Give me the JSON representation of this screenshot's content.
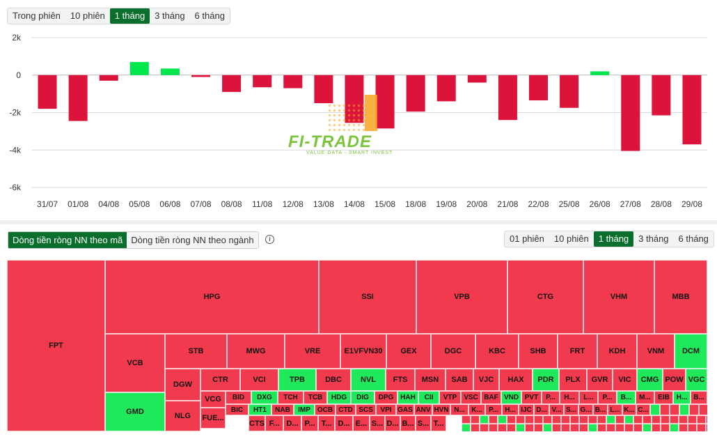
{
  "colors": {
    "negative": "#dc143c",
    "positive": "#00e64d",
    "active_tab": "#0a6e2c",
    "tm_negative": "#f23a4e",
    "tm_positive": "#1fe85a"
  },
  "top_range": {
    "options": [
      "Trong phiên",
      "10 phiên",
      "1 tháng",
      "3 tháng",
      "6 tháng"
    ],
    "selected": "1 tháng"
  },
  "logo": {
    "title": "FI-TRADE",
    "subtitle": "VALUE DATA - SMART INVEST"
  },
  "chart_data": {
    "type": "bar",
    "categories": [
      "31/07",
      "01/08",
      "04/08",
      "05/08",
      "06/08",
      "07/08",
      "08/08",
      "11/08",
      "12/08",
      "13/08",
      "14/08",
      "15/08",
      "18/08",
      "19/08",
      "20/08",
      "21/08",
      "22/08",
      "25/08",
      "26/08",
      "27/08",
      "28/08",
      "29/08"
    ],
    "values": [
      -1800,
      -2450,
      -300,
      700,
      350,
      -100,
      -900,
      -650,
      -700,
      -1500,
      -2550,
      -2850,
      -1950,
      -1400,
      -400,
      -2400,
      -1350,
      -1750,
      200,
      -4050,
      -2150,
      -3700
    ],
    "ylim": [
      -6000,
      2000
    ],
    "yticks": [
      2000,
      0,
      -2000,
      -4000,
      -6000
    ],
    "ytick_labels": [
      "2k",
      "0",
      "-2k",
      "-4k",
      "-6k"
    ],
    "grid": true
  },
  "bottom": {
    "tabs": [
      "Dòng tiền ròng NN theo mã",
      "Dòng tiền ròng NN theo ngành"
    ],
    "selected_tab": "Dòng tiền ròng NN theo mã",
    "range_options": [
      "01 phiên",
      "10 phiên",
      "1 tháng",
      "3 tháng",
      "6 tháng"
    ],
    "range_selected": "1 tháng",
    "info_icon": "info-circle-icon"
  },
  "treemap": [
    {
      "label": "FPT",
      "sign": "neg"
    },
    {
      "label": "HPG",
      "sign": "neg"
    },
    {
      "label": "SSI",
      "sign": "neg"
    },
    {
      "label": "VPB",
      "sign": "neg"
    },
    {
      "label": "CTG",
      "sign": "neg"
    },
    {
      "label": "VHM",
      "sign": "neg"
    },
    {
      "label": "MBB",
      "sign": "neg"
    },
    {
      "label": "VCB",
      "sign": "neg"
    },
    {
      "label": "GMD",
      "sign": "pos"
    },
    {
      "label": "STB",
      "sign": "neg"
    },
    {
      "label": "MWG",
      "sign": "neg"
    },
    {
      "label": "VRE",
      "sign": "neg"
    },
    {
      "label": "E1VFVN30",
      "sign": "neg"
    },
    {
      "label": "GEX",
      "sign": "neg"
    },
    {
      "label": "DGC",
      "sign": "neg"
    },
    {
      "label": "KBC",
      "sign": "neg"
    },
    {
      "label": "SHB",
      "sign": "neg"
    },
    {
      "label": "FRT",
      "sign": "neg"
    },
    {
      "label": "KDH",
      "sign": "neg"
    },
    {
      "label": "VNM",
      "sign": "neg"
    },
    {
      "label": "DCM",
      "sign": "pos"
    },
    {
      "label": "DGW",
      "sign": "neg"
    },
    {
      "label": "NLG",
      "sign": "neg"
    },
    {
      "label": "CTR",
      "sign": "neg"
    },
    {
      "label": "VCI",
      "sign": "neg"
    },
    {
      "label": "TPB",
      "sign": "pos"
    },
    {
      "label": "DBC",
      "sign": "neg"
    },
    {
      "label": "NVL",
      "sign": "pos"
    },
    {
      "label": "FTS",
      "sign": "neg"
    },
    {
      "label": "MSN",
      "sign": "neg"
    },
    {
      "label": "SAB",
      "sign": "neg"
    },
    {
      "label": "VJC",
      "sign": "neg"
    },
    {
      "label": "HAX",
      "sign": "neg"
    },
    {
      "label": "PDR",
      "sign": "pos"
    },
    {
      "label": "PLX",
      "sign": "neg"
    },
    {
      "label": "GVR",
      "sign": "neg"
    },
    {
      "label": "VIC",
      "sign": "neg"
    },
    {
      "label": "CMG",
      "sign": "pos"
    },
    {
      "label": "POW",
      "sign": "neg"
    },
    {
      "label": "VGC",
      "sign": "pos"
    },
    {
      "label": "VCG",
      "sign": "neg"
    },
    {
      "label": "FUE...",
      "sign": "neg"
    },
    {
      "label": "BID",
      "sign": "neg"
    },
    {
      "label": "DXG",
      "sign": "pos"
    },
    {
      "label": "TCH",
      "sign": "neg"
    },
    {
      "label": "TCB",
      "sign": "neg"
    },
    {
      "label": "HDG",
      "sign": "pos"
    },
    {
      "label": "DIG",
      "sign": "pos"
    },
    {
      "label": "DPG",
      "sign": "neg"
    },
    {
      "label": "HAH",
      "sign": "pos"
    },
    {
      "label": "CII",
      "sign": "pos"
    },
    {
      "label": "VTP",
      "sign": "neg"
    },
    {
      "label": "VSC",
      "sign": "neg"
    },
    {
      "label": "BAF",
      "sign": "neg"
    },
    {
      "label": "VND",
      "sign": "pos"
    },
    {
      "label": "PVT",
      "sign": "neg"
    },
    {
      "label": "P...",
      "sign": "neg"
    },
    {
      "label": "H...",
      "sign": "neg"
    },
    {
      "label": "L...",
      "sign": "neg"
    },
    {
      "label": "P...",
      "sign": "neg"
    },
    {
      "label": "B...",
      "sign": "pos"
    },
    {
      "label": "M...",
      "sign": "neg"
    },
    {
      "label": "EIB",
      "sign": "neg"
    },
    {
      "label": "H...",
      "sign": "pos"
    },
    {
      "label": "B...",
      "sign": "neg"
    },
    {
      "label": "BIC",
      "sign": "neg"
    },
    {
      "label": "HT1",
      "sign": "pos"
    },
    {
      "label": "NAB",
      "sign": "neg"
    },
    {
      "label": "IMP",
      "sign": "pos"
    },
    {
      "label": "OCB",
      "sign": "neg"
    },
    {
      "label": "CTD",
      "sign": "neg"
    },
    {
      "label": "SCS",
      "sign": "neg"
    },
    {
      "label": "VPI",
      "sign": "neg"
    },
    {
      "label": "GAS",
      "sign": "neg"
    },
    {
      "label": "ANV",
      "sign": "neg"
    },
    {
      "label": "HVN",
      "sign": "neg"
    },
    {
      "label": "N...",
      "sign": "neg"
    },
    {
      "label": "K...",
      "sign": "neg"
    },
    {
      "label": "P...",
      "sign": "neg"
    },
    {
      "label": "H...",
      "sign": "neg"
    },
    {
      "label": "IJC",
      "sign": "neg"
    },
    {
      "label": "D...",
      "sign": "neg"
    },
    {
      "label": "V...",
      "sign": "neg"
    },
    {
      "label": "S...",
      "sign": "neg"
    },
    {
      "label": "G...",
      "sign": "neg"
    },
    {
      "label": "B...",
      "sign": "neg"
    },
    {
      "label": "L...",
      "sign": "neg"
    },
    {
      "label": "K...",
      "sign": "neg"
    },
    {
      "label": "C...",
      "sign": "neg"
    },
    {
      "label": "CTS",
      "sign": "neg"
    },
    {
      "label": "F...",
      "sign": "neg"
    },
    {
      "label": "D...",
      "sign": "neg"
    },
    {
      "label": "P...",
      "sign": "neg"
    },
    {
      "label": "T...",
      "sign": "neg"
    },
    {
      "label": "D...",
      "sign": "neg"
    },
    {
      "label": "E...",
      "sign": "neg"
    },
    {
      "label": "S...",
      "sign": "neg"
    },
    {
      "label": "D...",
      "sign": "neg"
    },
    {
      "label": "B...",
      "sign": "neg"
    },
    {
      "label": "S...",
      "sign": "neg"
    },
    {
      "label": "T...",
      "sign": "neg"
    }
  ]
}
